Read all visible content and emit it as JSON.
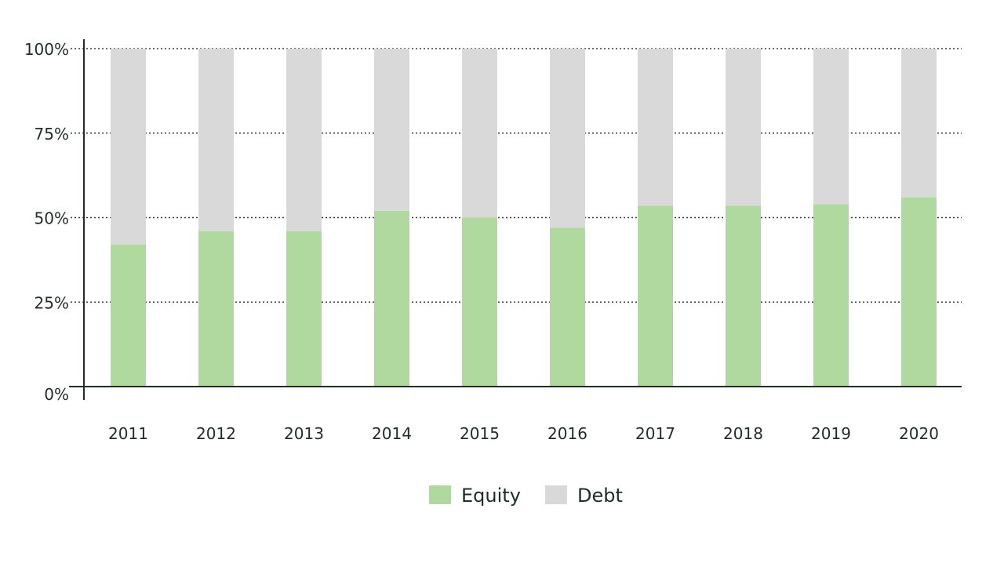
{
  "chart_data": {
    "type": "bar",
    "stacked": true,
    "categories": [
      "2011",
      "2012",
      "2013",
      "2014",
      "2015",
      "2016",
      "2017",
      "2018",
      "2019",
      "2020"
    ],
    "series": [
      {
        "name": "Equity",
        "values": [
          42,
          46,
          46,
          52,
          50,
          47,
          53.5,
          53.5,
          54,
          56
        ]
      },
      {
        "name": "Debt",
        "values": [
          58,
          54,
          54,
          48,
          50,
          53,
          46.5,
          46.5,
          46,
          44
        ]
      }
    ],
    "y_ticks": [
      "0%",
      "25%",
      "50%",
      "75%",
      "100%"
    ],
    "ylim": [
      0,
      100
    ],
    "grid": true,
    "legend_position": "bottom-center",
    "colors": {
      "Equity": "#b0d9a0",
      "Debt": "#d9d9d9",
      "axis": "#1f2d25",
      "grid": "#3a3a3a",
      "text": "#1f2d25"
    }
  }
}
